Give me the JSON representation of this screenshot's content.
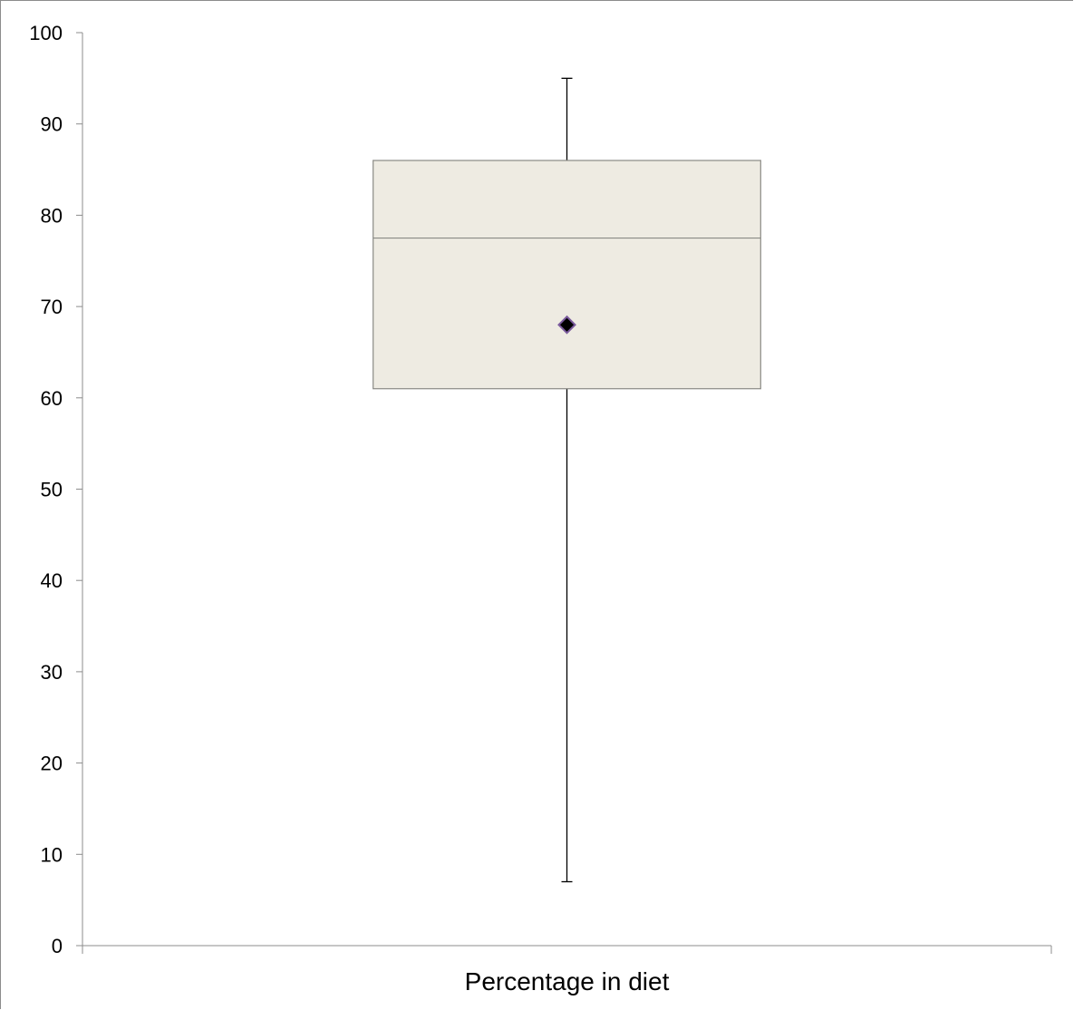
{
  "chart_data": {
    "type": "box",
    "categories": [
      "Percentage in diet"
    ],
    "series": [
      {
        "min": 7,
        "q1": 61,
        "median": 77.5,
        "q3": 86,
        "max": 95,
        "mean": 68
      }
    ],
    "title": "",
    "xlabel": "",
    "ylabel": "",
    "ylim": [
      0,
      100
    ],
    "yticks": [
      0,
      10,
      20,
      30,
      40,
      50,
      60,
      70,
      80,
      90,
      100
    ],
    "grid": false,
    "legend": "none",
    "colors": {
      "box_fill": "#eeebe2",
      "box_stroke": "#8a8a85",
      "whisker": "#000000",
      "axis": "#8c8c8c",
      "mean_marker_fill": "#000000",
      "mean_marker_stroke": "#7a5a9c"
    }
  }
}
